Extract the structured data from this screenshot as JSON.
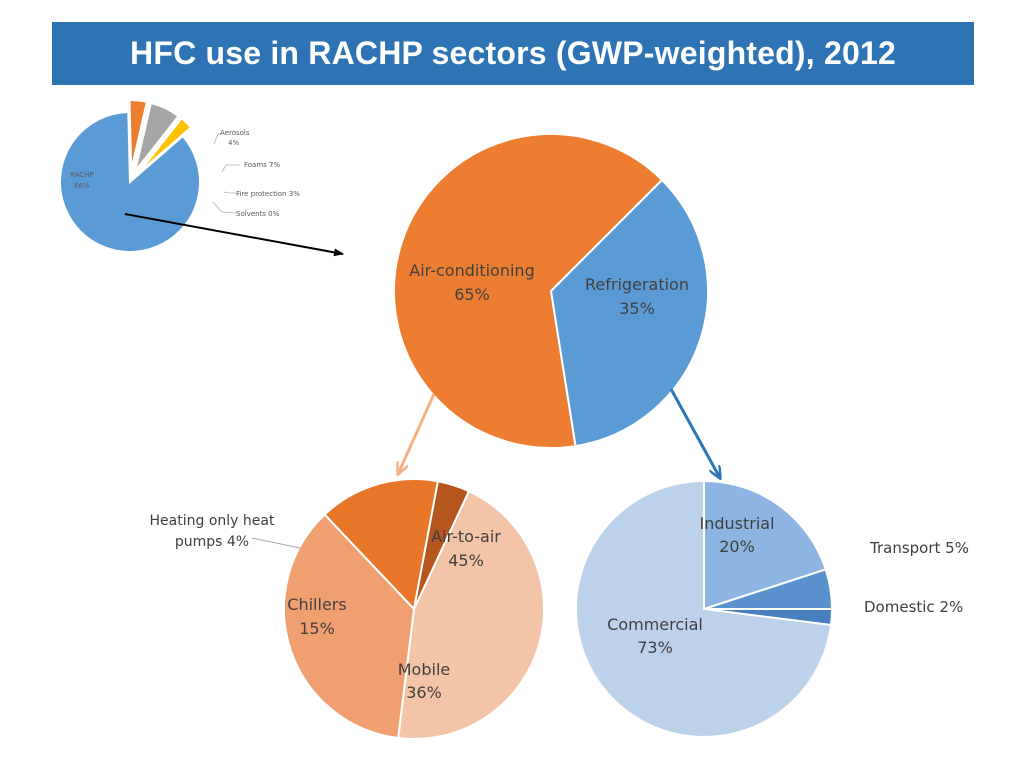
{
  "header": {
    "title": "HFC use in RACHP sectors (GWP-weighted), 2012"
  },
  "colors": {
    "title_bg": "#2E74B5",
    "rachp_blue": "#5B9BD5",
    "orange": "#ED7D31",
    "gray": "#A5A5A5",
    "yellow": "#FFC000",
    "ac_peach": "#F4C4A8",
    "ac_mid": "#F0A070",
    "ac_dark": "#E87628",
    "ac_darkest": "#B5561E",
    "ref_light": "#BCD2EA",
    "ref_mid": "#8DB4E2",
    "ref_dark": "#5A92CE",
    "ref_darkest": "#4A7FBF"
  },
  "chart_data": [
    {
      "type": "pie",
      "id": "hfc-overview",
      "slices": [
        {
          "name": "RACHP",
          "value": 86,
          "label": "86%"
        },
        {
          "name": "Aerosols",
          "value": 4,
          "label": "4%"
        },
        {
          "name": "Foams",
          "value": 7,
          "label": "7%"
        },
        {
          "name": "Fire protection",
          "value": 3,
          "label": "3%"
        },
        {
          "name": "Solvents",
          "value": 0,
          "label": "0%"
        }
      ]
    },
    {
      "type": "pie",
      "id": "rachp-split",
      "slices": [
        {
          "name": "Air-conditioning",
          "value": 65,
          "label": "65%"
        },
        {
          "name": "Refrigeration",
          "value": 35,
          "label": "35%"
        }
      ]
    },
    {
      "type": "pie",
      "id": "air-conditioning-split",
      "slices": [
        {
          "name": "Air-to-air",
          "value": 45,
          "label": "45%"
        },
        {
          "name": "Mobile",
          "value": 36,
          "label": "36%"
        },
        {
          "name": "Chillers",
          "value": 15,
          "label": "15%"
        },
        {
          "name": "Heating only heat pumps",
          "value": 4,
          "label": "4%"
        }
      ]
    },
    {
      "type": "pie",
      "id": "refrigeration-split",
      "slices": [
        {
          "name": "Industrial",
          "value": 20,
          "label": "20%"
        },
        {
          "name": "Transport",
          "value": 5,
          "label": "5%"
        },
        {
          "name": "Domestic",
          "value": 2,
          "label": "2%"
        },
        {
          "name": "Commercial",
          "value": 73,
          "label": "73%"
        }
      ]
    }
  ],
  "labels": {
    "small": {
      "rachp_name": "RACHP",
      "rachp_value": "86%",
      "aerosols_name": "Aerosols",
      "aerosols_value": "4%",
      "foams": "Foams  7%",
      "fire": "Fire protection  3%",
      "solvents": "Solvents  0%"
    },
    "main": {
      "ac_name": "Air-conditioning",
      "ac_value": "65%",
      "ref_name": "Refrigeration",
      "ref_value": "35%"
    },
    "ac": {
      "air_name": "Air-to-air",
      "air_value": "45%",
      "mobile_name": "Mobile",
      "mobile_value": "36%",
      "chillers_name": "Chillers",
      "chillers_value": "15%",
      "heating_line1": "Heating only heat",
      "heating_line2": "pumps  4%"
    },
    "ref": {
      "industrial_name": "Industrial",
      "industrial_value": "20%",
      "commercial_name": "Commercial",
      "commercial_value": "73%",
      "transport": "Transport  5%",
      "domestic": "Domestic  2%"
    }
  }
}
